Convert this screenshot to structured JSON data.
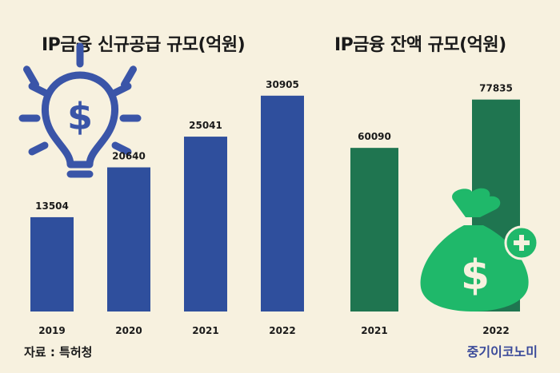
{
  "chart_data": [
    {
      "type": "bar",
      "title": "IP금융 신규공급 규모(억원)",
      "categories": [
        "2019",
        "2020",
        "2021",
        "2022"
      ],
      "values": [
        13504,
        20640,
        25041,
        30905
      ],
      "color": "#2f4f9d",
      "ylim": [
        0,
        35000
      ]
    },
    {
      "type": "bar",
      "title": "IP금융 잔액 규모(억원)",
      "categories": [
        "2021",
        "2022"
      ],
      "values": [
        60090,
        77835
      ],
      "color": "#1f7550",
      "ylim": [
        0,
        88000
      ]
    }
  ],
  "footer": {
    "source": "자료 : 특허청",
    "brand": "중기이코노미"
  },
  "icons": [
    "lightbulb-dollar-icon",
    "money-bag-plus-icon"
  ],
  "colors": {
    "background": "#f7f1df",
    "icon_blue": "#3a55a8",
    "icon_green": "#1fb86a"
  }
}
